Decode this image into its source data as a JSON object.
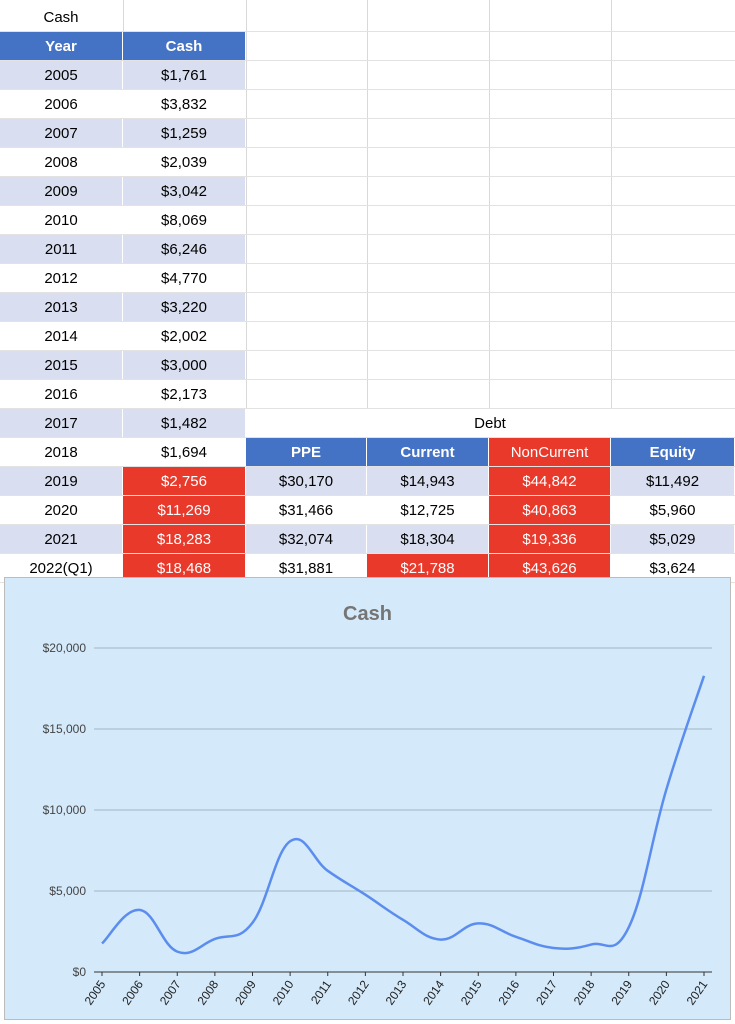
{
  "cash_table": {
    "title": "Cash",
    "headers": {
      "year": "Year",
      "cash": "Cash"
    },
    "rows": [
      {
        "year": "2005",
        "cash": "$1,761",
        "highlight": false
      },
      {
        "year": "2006",
        "cash": "$3,832",
        "highlight": false
      },
      {
        "year": "2007",
        "cash": "$1,259",
        "highlight": false
      },
      {
        "year": "2008",
        "cash": "$2,039",
        "highlight": false
      },
      {
        "year": "2009",
        "cash": "$3,042",
        "highlight": false
      },
      {
        "year": "2010",
        "cash": "$8,069",
        "highlight": false
      },
      {
        "year": "2011",
        "cash": "$6,246",
        "highlight": false
      },
      {
        "year": "2012",
        "cash": "$4,770",
        "highlight": false
      },
      {
        "year": "2013",
        "cash": "$3,220",
        "highlight": false
      },
      {
        "year": "2014",
        "cash": "$2,002",
        "highlight": false
      },
      {
        "year": "2015",
        "cash": "$3,000",
        "highlight": false
      },
      {
        "year": "2016",
        "cash": "$2,173",
        "highlight": false
      },
      {
        "year": "2017",
        "cash": "$1,482",
        "highlight": false
      },
      {
        "year": "2018",
        "cash": "$1,694",
        "highlight": false
      },
      {
        "year": "2019",
        "cash": "$2,756",
        "highlight": true
      },
      {
        "year": "2020",
        "cash": "$11,269",
        "highlight": true
      },
      {
        "year": "2021",
        "cash": "$18,283",
        "highlight": true
      },
      {
        "year": "2022(Q1)",
        "cash": "$18,468",
        "highlight": true
      }
    ]
  },
  "debt_table": {
    "title": "Debt",
    "headers": [
      {
        "label": "PPE",
        "style": "hdr"
      },
      {
        "label": "Current",
        "style": "hdr"
      },
      {
        "label": "NonCurrent",
        "style": "hot"
      },
      {
        "label": "Equity",
        "style": "hdr"
      }
    ],
    "rows": [
      [
        {
          "v": "$30,170",
          "hot": false
        },
        {
          "v": "$14,943",
          "hot": false
        },
        {
          "v": "$44,842",
          "hot": true
        },
        {
          "v": "$11,492",
          "hot": false
        }
      ],
      [
        {
          "v": "$31,466",
          "hot": false
        },
        {
          "v": "$12,725",
          "hot": false
        },
        {
          "v": "$40,863",
          "hot": true
        },
        {
          "v": "$5,960",
          "hot": false
        }
      ],
      [
        {
          "v": "$32,074",
          "hot": false
        },
        {
          "v": "$18,304",
          "hot": false
        },
        {
          "v": "$19,336",
          "hot": true
        },
        {
          "v": "$5,029",
          "hot": false
        }
      ],
      [
        {
          "v": "$31,881",
          "hot": false
        },
        {
          "v": "$21,788",
          "hot": true
        },
        {
          "v": "$43,626",
          "hot": true
        },
        {
          "v": "$3,624",
          "hot": false
        }
      ]
    ]
  },
  "colors": {
    "header": "#4472c4",
    "highlight": "#e8392b",
    "band": "#d9dff0",
    "chart_bg": "#d4e9fa",
    "line": "#5b8def"
  },
  "chart_data": {
    "type": "line",
    "title": "Cash",
    "x": [
      "2005",
      "2006",
      "2007",
      "2008",
      "2009",
      "2010",
      "2011",
      "2012",
      "2013",
      "2014",
      "2015",
      "2016",
      "2017",
      "2018",
      "2019",
      "2020",
      "2021"
    ],
    "series": [
      {
        "values": [
          1761,
          3832,
          1259,
          2039,
          3042,
          8069,
          6246,
          4770,
          3220,
          2002,
          3000,
          2173,
          1482,
          1694,
          2756,
          11269,
          18283
        ]
      }
    ],
    "y_ticks": [
      "$0",
      "$5,000",
      "$10,000",
      "$15,000",
      "$20,000"
    ],
    "ylim": [
      0,
      20000
    ],
    "grid": true,
    "smooth": true
  }
}
